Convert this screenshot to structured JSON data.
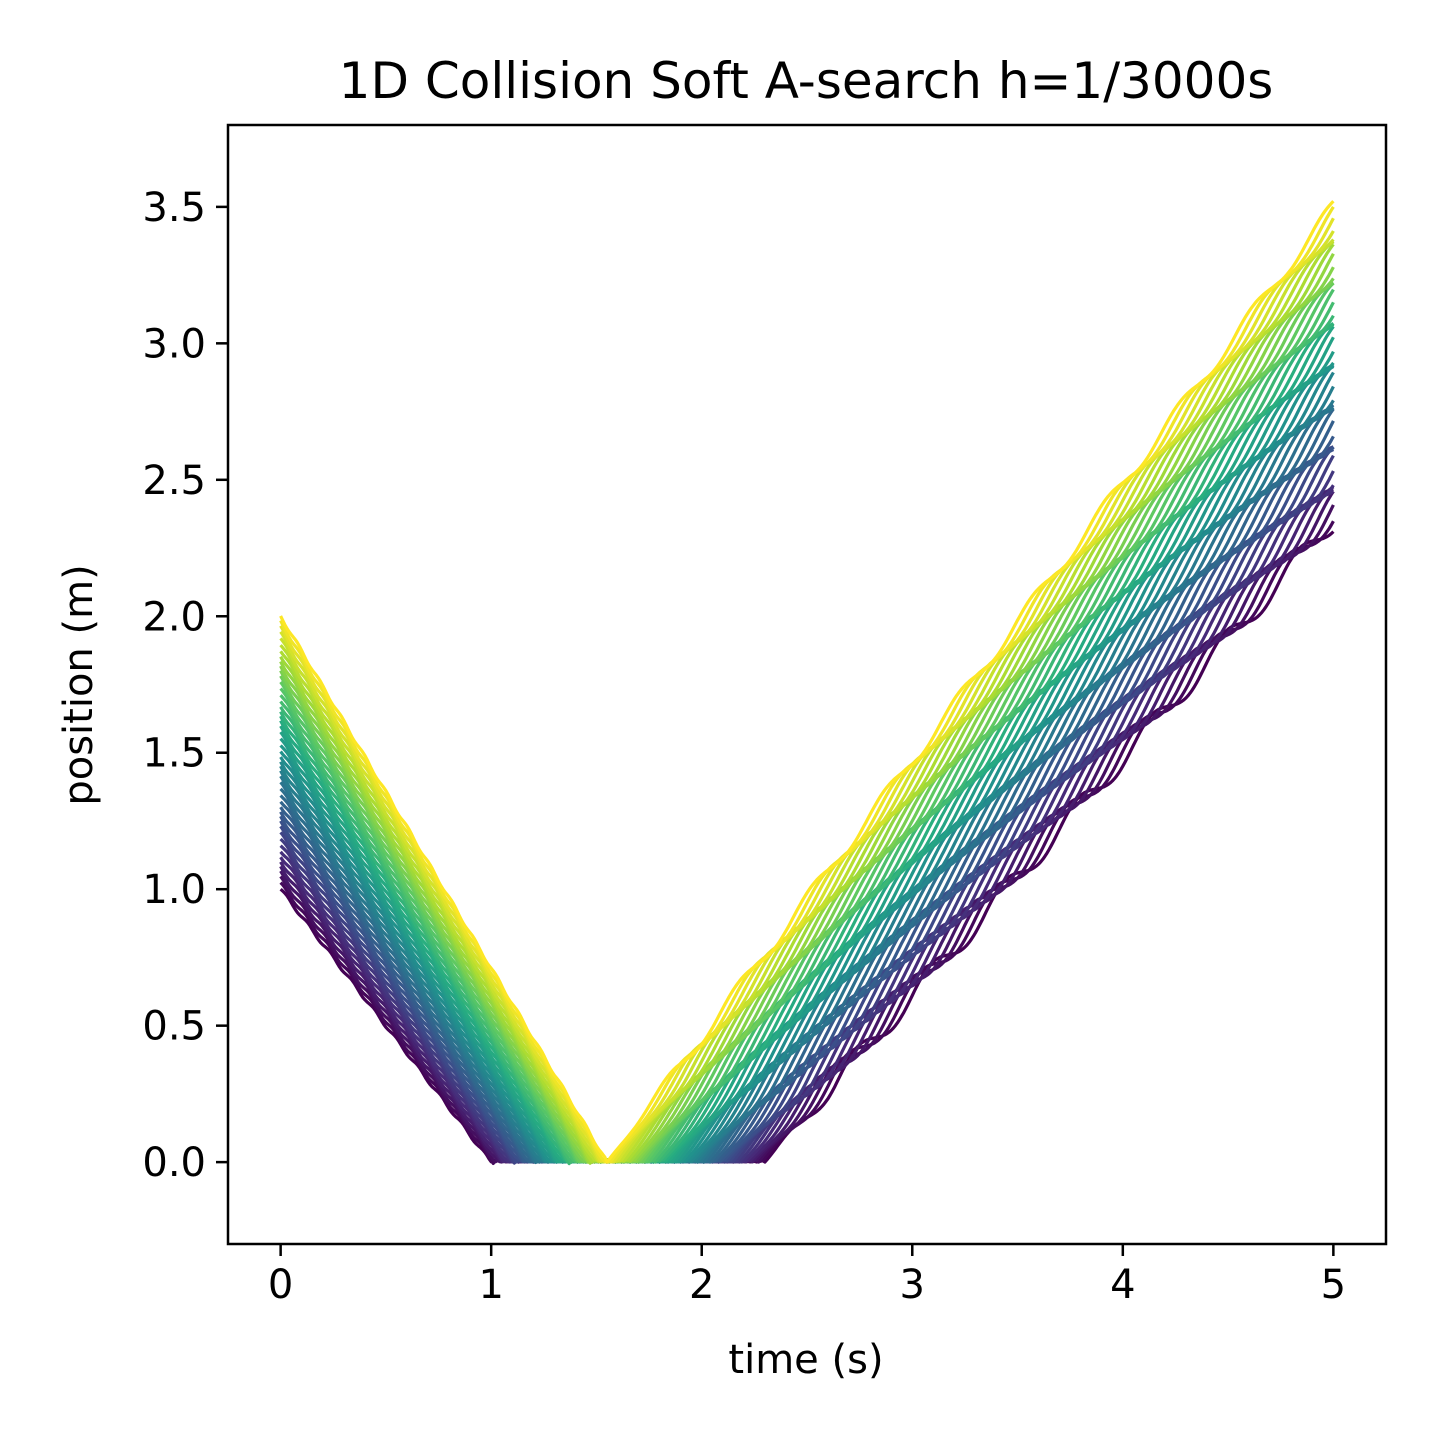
{
  "chart_data": {
    "type": "line",
    "title": "1D Collision Soft A-search h=1/3000s",
    "xlabel": "time (s)",
    "ylabel": "position (m)",
    "xlim": [
      -0.25,
      5.25
    ],
    "ylim": [
      -0.3,
      3.8
    ],
    "xticks": [
      0,
      1,
      2,
      3,
      4,
      5
    ],
    "xtick_labels": [
      "0",
      "1",
      "2",
      "3",
      "4",
      "5"
    ],
    "yticks": [
      0.0,
      0.5,
      1.0,
      1.5,
      2.0,
      2.5,
      3.0,
      3.5
    ],
    "ytick_labels": [
      "0.0",
      "0.5",
      "1.0",
      "1.5",
      "2.0",
      "2.5",
      "3.0",
      "3.5"
    ],
    "grid": false,
    "legend": "none",
    "colormap": "viridis",
    "series_count": 50,
    "series_color_range": [
      "#440154",
      "#fde725"
    ],
    "trajectory_family": {
      "t_start": 0,
      "t_end": 5,
      "x0_range": [
        1.0,
        2.0
      ],
      "approach_speed": -1.0,
      "floor_position": 0.0,
      "contact_time_range": [
        1.0,
        1.55
      ],
      "departure_time_range": [
        2.3,
        1.55
      ],
      "final_position_range": [
        2.35,
        3.5
      ]
    }
  }
}
